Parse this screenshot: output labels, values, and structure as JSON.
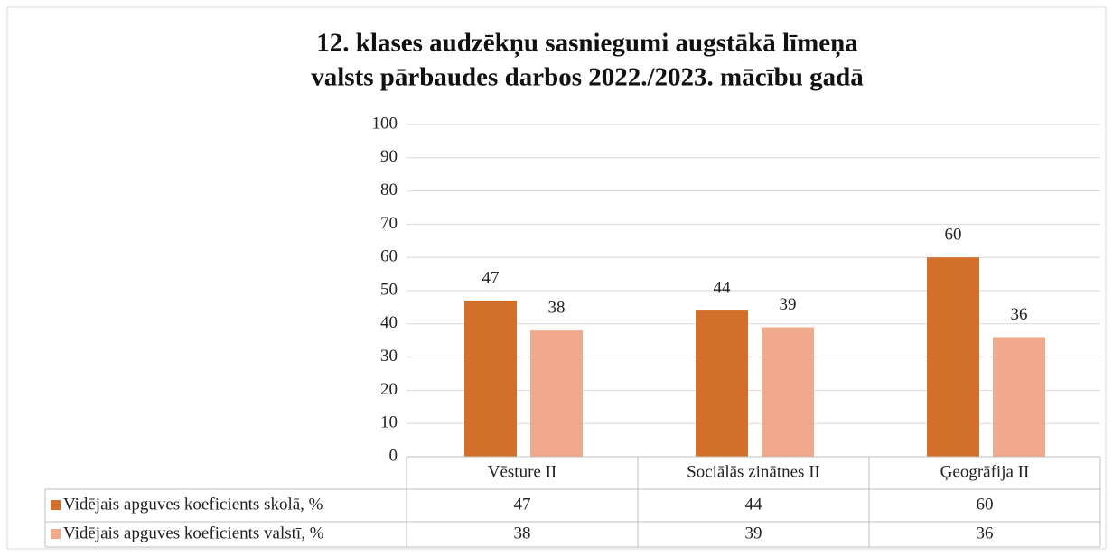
{
  "chart_data": {
    "type": "bar",
    "title": [
      "12. klases audzēkņu sasniegumi augstākā līmeņa",
      "valsts pārbaudes darbos 2022./2023. mācību gadā"
    ],
    "categories": [
      "Vēsture II",
      "Sociālās zinātnes II",
      "Ģeogrāfija II"
    ],
    "series": [
      {
        "name": "Vidējais apguves koeficients skolā, %",
        "color": "#d2702b",
        "values": [
          47,
          44,
          60
        ]
      },
      {
        "name": "Vidējais apguves koeficients valstī, %",
        "color": "#f0a98b",
        "values": [
          38,
          39,
          36
        ]
      }
    ],
    "ylim": [
      0,
      100
    ],
    "yticks": [
      0,
      10,
      20,
      30,
      40,
      50,
      60,
      70,
      80,
      90,
      100
    ],
    "grid": true,
    "data_table": true
  }
}
